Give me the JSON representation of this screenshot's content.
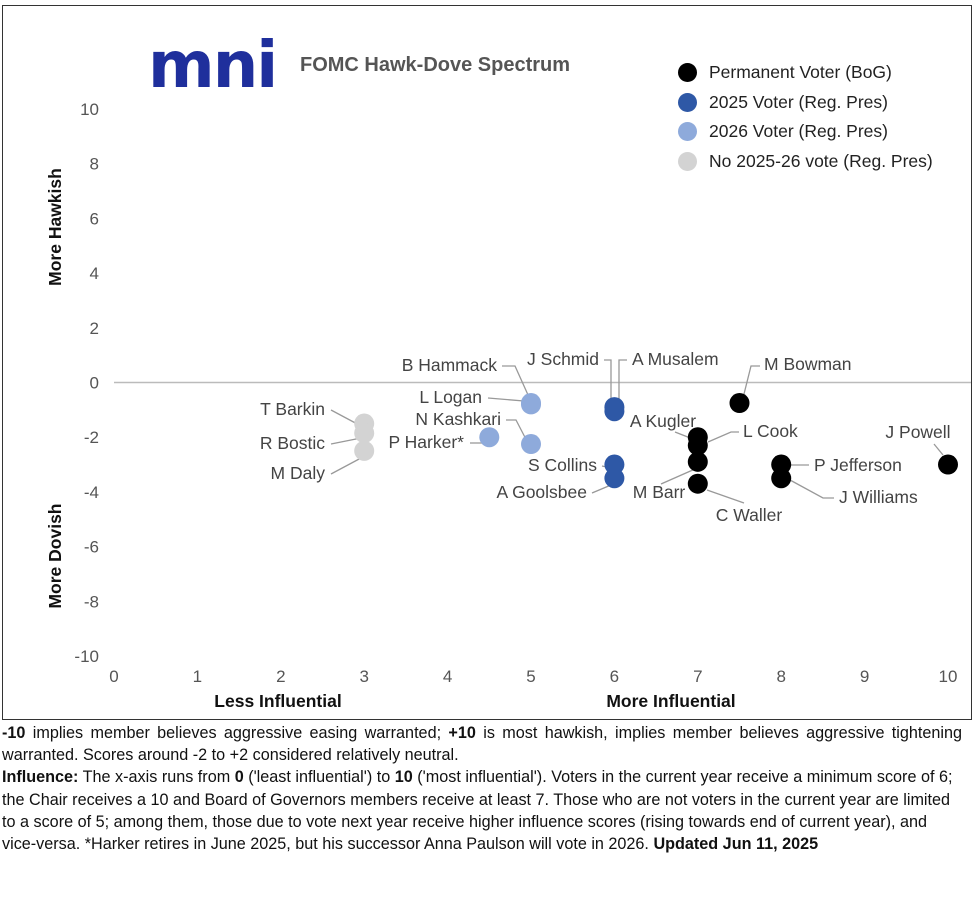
{
  "logo": {
    "text": "mni"
  },
  "chart_data": {
    "type": "scatter",
    "title": "FOMC Hawk-Dove Spectrum",
    "xlim": [
      0,
      10
    ],
    "ylim": [
      -10,
      10
    ],
    "x_ticks": [
      0,
      1,
      2,
      3,
      4,
      5,
      6,
      7,
      8,
      9,
      10
    ],
    "y_ticks": [
      -10,
      -8,
      -6,
      -4,
      -2,
      0,
      2,
      4,
      6,
      8,
      10
    ],
    "x_axis_labels": {
      "left": "Less Influential",
      "right": "More Influential"
    },
    "y_axis_labels": {
      "top": "More Hawkish",
      "bottom": "More Dovish"
    },
    "grid": false,
    "zero_line": true,
    "legend_position": "top-right",
    "series": [
      {
        "name": "Permanent Voter (BoG)",
        "color": "#000000",
        "points": [
          {
            "label": "J Powell",
            "x": 10,
            "y": -3
          },
          {
            "label": "M Bowman",
            "x": 7.5,
            "y": -0.75
          },
          {
            "label": "P Jefferson",
            "x": 8,
            "y": -3
          },
          {
            "label": "J Williams",
            "x": 8,
            "y": -3.5
          },
          {
            "label": "A Kugler",
            "x": 7,
            "y": -2
          },
          {
            "label": "L Cook",
            "x": 7,
            "y": -2.3
          },
          {
            "label": "M Barr",
            "x": 7,
            "y": -2.9
          },
          {
            "label": "C Waller",
            "x": 7,
            "y": -3.7
          }
        ]
      },
      {
        "name": "2025 Voter (Reg. Pres)",
        "color": "#2e58a6",
        "points": [
          {
            "label": "J Schmid",
            "x": 6,
            "y": -0.9
          },
          {
            "label": "A Musalem",
            "x": 6,
            "y": -1.05
          },
          {
            "label": "S Collins",
            "x": 6,
            "y": -3
          },
          {
            "label": "A Goolsbee",
            "x": 6,
            "y": -3.5
          }
        ]
      },
      {
        "name": "2026 Voter (Reg. Pres)",
        "color": "#8eaadb",
        "points": [
          {
            "label": "B Hammack",
            "x": 5,
            "y": -0.75
          },
          {
            "label": "L Logan",
            "x": 5,
            "y": -0.8
          },
          {
            "label": "N Kashkari",
            "x": 5,
            "y": -2.25
          },
          {
            "label": "P Harker*",
            "x": 4.5,
            "y": -2
          }
        ]
      },
      {
        "name": "No 2025-26 vote (Reg. Pres)",
        "color": "#d3d3d3",
        "points": [
          {
            "label": "T Barkin",
            "x": 3,
            "y": -1.5
          },
          {
            "label": "R Bostic",
            "x": 3,
            "y": -1.85
          },
          {
            "label": "M Daly",
            "x": 3,
            "y": -2.5
          }
        ]
      }
    ]
  },
  "notes": {
    "line1_bold": "-10",
    "line1_a": " implies member believes aggressive easing warranted; ",
    "line1_bold2": "+10",
    "line1_b": " is most hawkish, implies member believes aggressive tightening warranted. Scores around -2 to +2 considered relatively neutral.",
    "influence_bold": "Influence:",
    "influence_a": " The x-axis runs from ",
    "influence_b0": "0",
    "influence_b": " ('least influential') to ",
    "influence_b10": "10",
    "influence_c": " ('most influential'). Voters in the current year receive a minimum score of 6; the Chair receives a 10 and Board of Governors members receive at least 7. Those who are not voters in the current year are limited to a score of 5; among them, those due to vote next year receive higher influence scores (rising towards end of current year), and vice-versa. *Harker retires in June 2025, but his successor Anna Paulson will vote in 2026. ",
    "updated": "Updated Jun 11, 2025"
  }
}
